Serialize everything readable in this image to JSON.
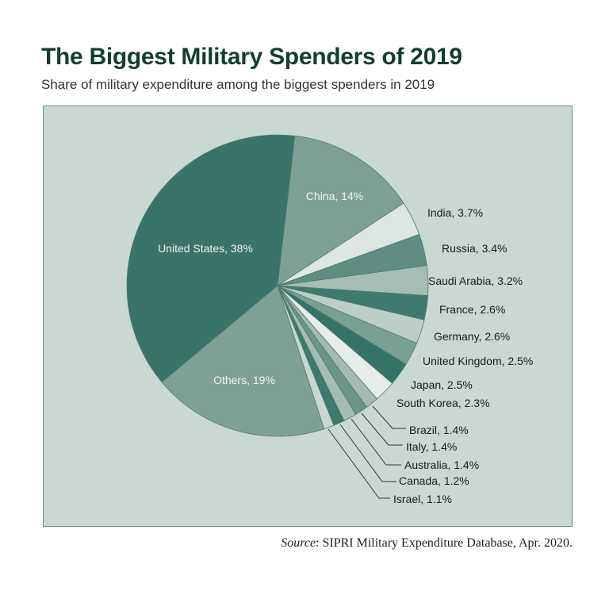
{
  "chart_data": {
    "type": "pie",
    "title": "The Biggest Military Spenders of 2019",
    "subtitle": "Share of military expenditure among the biggest spenders in 2019",
    "unit": "%",
    "slices": [
      {
        "label": "China",
        "value": 14,
        "text": "China, 14%",
        "color": "#7fa195",
        "inside": true
      },
      {
        "label": "India",
        "value": 3.7,
        "text": "India, 3.7%",
        "color": "#dde6e1"
      },
      {
        "label": "Russia",
        "value": 3.4,
        "text": "Russia, 3.4%",
        "color": "#5f8d81"
      },
      {
        "label": "Saudi Arabia",
        "value": 3.2,
        "text": "Saudi Arabia, 3.2%",
        "color": "#a6bdb4"
      },
      {
        "label": "France",
        "value": 2.6,
        "text": "France, 2.6%",
        "color": "#3f7a6d"
      },
      {
        "label": "Germany",
        "value": 2.6,
        "text": "Germany, 2.6%",
        "color": "#bccfc7"
      },
      {
        "label": "United Kingdom",
        "value": 2.5,
        "text": "United Kingdom, 2.5%",
        "color": "#7aa093"
      },
      {
        "label": "Japan",
        "value": 2.5,
        "text": "Japan, 2.5%",
        "color": "#357366"
      },
      {
        "label": "South Korea",
        "value": 2.3,
        "text": "South Korea, 2.3%",
        "color": "#e6ede9"
      },
      {
        "label": "Brazil",
        "value": 1.4,
        "text": "Brazil, 1.4%",
        "color": "#a3bbb1"
      },
      {
        "label": "Italy",
        "value": 1.4,
        "text": "Italy, 1.4%",
        "color": "#6a9588"
      },
      {
        "label": "Australia",
        "value": 1.4,
        "text": "Australia, 1.4%",
        "color": "#a5bdb3"
      },
      {
        "label": "Canada",
        "value": 1.2,
        "text": "Canada, 1.2%",
        "color": "#3d7a6d"
      },
      {
        "label": "Israel",
        "value": 1.1,
        "text": "Israel, 1.1%",
        "color": "#c8d8d0"
      },
      {
        "label": "Others",
        "value": 19,
        "text": "Others, 19%",
        "color": "#7fa195",
        "inside": true
      },
      {
        "label": "United States",
        "value": 38,
        "text": "United States, 38%",
        "color": "#3a7367",
        "inside": true
      }
    ]
  },
  "source": {
    "label": "Source",
    "text": ": SIPRI Military Expenditure Database, Apr. 2020."
  },
  "colors": {
    "title": "#143d32",
    "panel": "#c9d9d1",
    "slice_stroke": "#4f7a6e"
  }
}
